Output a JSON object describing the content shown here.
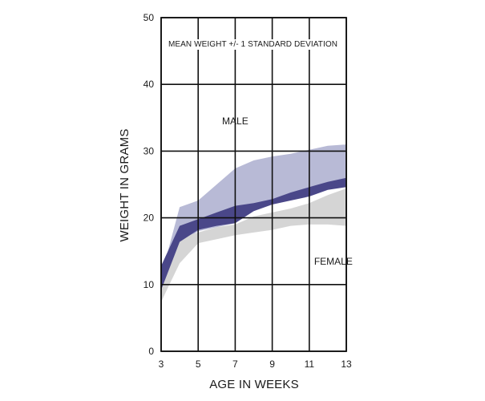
{
  "chart_data": {
    "type": "area",
    "title": "MEAN WEIGHT +/- 1 STANDARD DEVIATION",
    "xlabel": "AGE IN WEEKS",
    "ylabel": "WEIGHT IN GRAMS",
    "xlim": [
      3,
      13
    ],
    "ylim": [
      0,
      50
    ],
    "x_ticks": [
      3,
      5,
      7,
      9,
      11,
      13
    ],
    "y_ticks": [
      0,
      10,
      20,
      30,
      40,
      50
    ],
    "grid": true,
    "annotations": [
      {
        "text": "MALE",
        "x": 7,
        "y": 34
      },
      {
        "text": "FEMALE",
        "x": 12.3,
        "y": 13
      }
    ],
    "series": [
      {
        "name": "MALE",
        "color": "#b8bad6",
        "x": [
          3,
          4,
          5,
          6,
          7,
          8,
          9,
          10,
          11,
          12,
          13
        ],
        "upper": [
          11.2,
          21.6,
          22.6,
          25.0,
          27.4,
          28.6,
          29.2,
          29.6,
          30.2,
          30.8,
          31.0
        ],
        "lower": [
          8.0,
          16.2,
          18.0,
          18.6,
          19.2,
          21.0,
          22.2,
          23.0,
          23.8,
          24.6,
          24.8
        ]
      },
      {
        "name": "FEMALE",
        "color": "#d5d5d5",
        "x": [
          3,
          4,
          5,
          6,
          7,
          8,
          9,
          10,
          11,
          12,
          13
        ],
        "upper": [
          11.8,
          17.0,
          17.8,
          18.6,
          19.0,
          20.2,
          20.8,
          21.4,
          22.2,
          23.4,
          24.4
        ],
        "lower": [
          7.4,
          13.2,
          16.2,
          16.8,
          17.4,
          17.8,
          18.2,
          18.8,
          19.0,
          19.0,
          18.8
        ]
      },
      {
        "name": "overlap",
        "color": "#4a4789",
        "x": [
          3,
          4,
          5,
          6,
          7,
          8,
          9,
          10,
          11,
          12,
          13
        ],
        "upper": [
          12.8,
          18.8,
          19.8,
          20.8,
          21.8,
          22.2,
          22.8,
          23.8,
          24.6,
          25.4,
          26.0
        ],
        "lower": [
          9.2,
          16.4,
          18.2,
          18.8,
          19.2,
          21.0,
          22.0,
          22.6,
          23.2,
          24.2,
          24.6
        ]
      }
    ]
  }
}
